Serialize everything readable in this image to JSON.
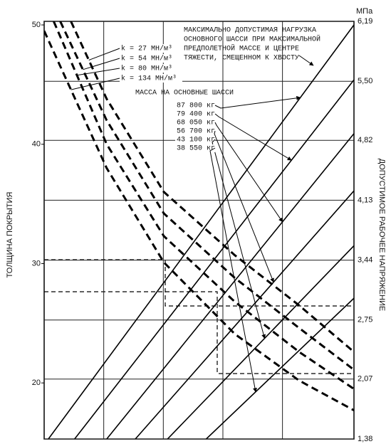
{
  "chart_data": {
    "type": "line",
    "y_label": "ТОЛЩИНА ПОКРЫТИЯ",
    "y2_label": "ДОПУСТИМОЕ РАБОЧЕЕ НАПРЯЖЕНИЕ",
    "y2_unit": "МПа",
    "annotation": [
      "МАКСИМАЛЬНО ДОПУСТИМАЯ НАГРУЗКА",
      "ОСНОВНОГО ШАССИ ПРИ МАКСИМАЛЬНОЙ",
      "ПРЕДПОЛЕТНОЙ МАССЕ И ЦЕНТРЕ",
      "ТЯЖЕСТИ, СМЕЩЕННОМ К ХВОСТУ"
    ],
    "mass_title": "МАССА НА ОСНОВНЫЕ ШАССИ",
    "xlim": [
      0,
      5.2
    ],
    "xticks": [
      1,
      2,
      3,
      4
    ],
    "ylim": [
      15.3,
      50.3
    ],
    "yticks": [
      20,
      30,
      40,
      50
    ],
    "y2lim": [
      1.38,
      6.19
    ],
    "y2ticks": [
      {
        "value": 1.38,
        "label": "1,38"
      },
      {
        "value": 2.07,
        "label": "2,07"
      },
      {
        "value": 2.75,
        "label": "2,75"
      },
      {
        "value": 3.44,
        "label": "3,44"
      },
      {
        "value": 4.13,
        "label": "4,13"
      },
      {
        "value": 4.82,
        "label": "4,82"
      },
      {
        "value": 5.5,
        "label": "5,50"
      },
      {
        "value": 6.19,
        "label": "6,19"
      }
    ],
    "grid": true,
    "series": [
      {
        "name": "87 800 кг",
        "style": "solid",
        "color": "#000",
        "x": [
          0.07,
          5.2
        ],
        "values": [
          15.3,
          50.0
        ]
      },
      {
        "name": "79 400 кг",
        "style": "solid",
        "color": "#000",
        "x": [
          0.51,
          5.2
        ],
        "values": [
          15.3,
          45.4
        ]
      },
      {
        "name": "68 050 кг",
        "style": "solid",
        "color": "#000",
        "x": [
          1.05,
          5.2
        ],
        "values": [
          15.3,
          40.9
        ]
      },
      {
        "name": "56 700 кг",
        "style": "solid",
        "color": "#000",
        "x": [
          1.53,
          5.2
        ],
        "values": [
          15.3,
          36.1
        ]
      },
      {
        "name": "43 100 кг",
        "style": "solid",
        "color": "#000",
        "x": [
          2.07,
          5.2
        ],
        "values": [
          15.3,
          31.5
        ]
      },
      {
        "name": "38 550 кг",
        "style": "solid",
        "color": "#000",
        "x": [
          2.72,
          5.2
        ],
        "values": [
          15.3,
          27.1
        ]
      },
      {
        "name": "k = 27 МН/м³",
        "style": "dashed",
        "color": "#000",
        "x": [
          0.45,
          1.05,
          2.01,
          3.2,
          4.28,
          5.2
        ],
        "values": [
          50.3,
          43.8,
          36.0,
          30.7,
          26.5,
          22.6
        ]
      },
      {
        "name": "k = 54 МН/м³",
        "style": "dashed",
        "color": "#000",
        "x": [
          0.27,
          1.05,
          2.01,
          3.2,
          4.28,
          5.2
        ],
        "values": [
          50.3,
          42.0,
          34.2,
          28.8,
          24.6,
          21.1
        ]
      },
      {
        "name": "k = 80 МН/м³",
        "style": "dashed",
        "color": "#000",
        "x": [
          0.16,
          1.05,
          2.01,
          3.2,
          4.28,
          5.2
        ],
        "values": [
          50.3,
          40.0,
          32.3,
          26.8,
          22.6,
          19.5
        ]
      },
      {
        "name": "k = 134 МН/м³",
        "style": "dashed",
        "color": "#000",
        "x": [
          0,
          1.05,
          2.01,
          3.2,
          4.28,
          5.2
        ],
        "values": [
          49.5,
          38.0,
          30.1,
          24.1,
          20.2,
          17.7
        ]
      }
    ]
  }
}
